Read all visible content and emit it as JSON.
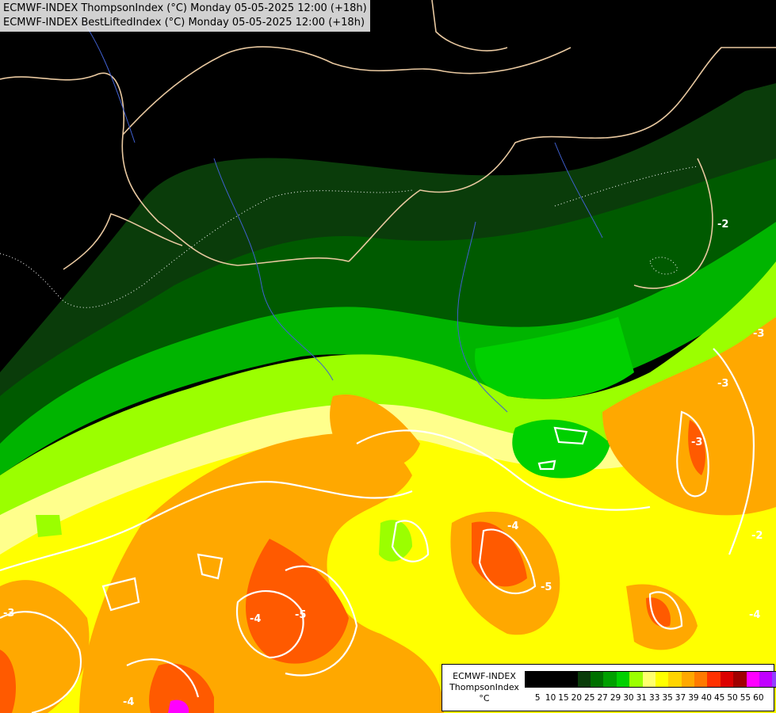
{
  "header": {
    "line1": "ECMWF-INDEX ThompsonIndex (°C) Monday 05-05-2025 12:00 (+18h)",
    "line2": "ECMWF-INDEX BestLiftedIndex (°C) Monday 05-05-2025 12:00 (+18h)"
  },
  "legend": {
    "title": "ECMWF-INDEX",
    "subtitle": "ThompsonIndex",
    "unit": "°C",
    "values": [
      "5",
      "10",
      "15",
      "20",
      "25",
      "27",
      "29",
      "30",
      "31",
      "33",
      "35",
      "37",
      "39",
      "40",
      "45",
      "50",
      "55",
      "60"
    ],
    "colors": [
      "#000000",
      "#000000",
      "#000000",
      "#000000",
      "#0a3c0a",
      "#007000",
      "#00a000",
      "#00d000",
      "#9bff00",
      "#ffff6e",
      "#ffff00",
      "#ffd400",
      "#ffa800",
      "#ff7a00",
      "#ff3200",
      "#dc0000",
      "#a00000",
      "#ff00ff",
      "#c000ff",
      "#9040ff",
      "#6020ff",
      "#0000ff"
    ]
  },
  "contour_labels": [
    "-4",
    "-5",
    "-4",
    "-3",
    "-2",
    "-3",
    "-4",
    "-5",
    "-4",
    "-2",
    "-3",
    "-3"
  ],
  "colors": {
    "background": "#000000",
    "borders": "#e8c8a0",
    "rivers": "#4060d0",
    "contours": "#ffffff"
  }
}
